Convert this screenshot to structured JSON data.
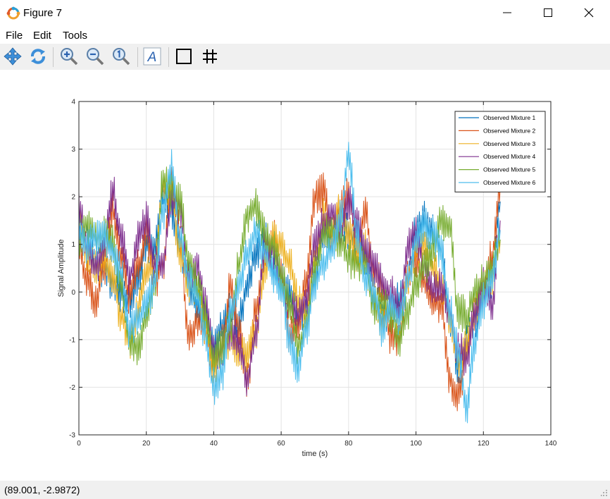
{
  "window": {
    "title": "Figure 7"
  },
  "menu": [
    {
      "key": "file",
      "label": "File"
    },
    {
      "key": "edit",
      "label": "Edit"
    },
    {
      "key": "tools",
      "label": "Tools"
    }
  ],
  "toolbar": [
    "pan-icon",
    "rotate-icon",
    "zoom-in-icon",
    "zoom-out-icon",
    "zoom-reset-icon",
    "text-insert-icon",
    "axes-box-icon",
    "grid-icon"
  ],
  "status": {
    "coords": "(89.001, -2.9872)"
  },
  "chart_data": {
    "type": "line",
    "title": "",
    "xlabel": "time (s)",
    "ylabel": "Signal Amplitude",
    "xlim": [
      0,
      140
    ],
    "ylim": [
      -3,
      4
    ],
    "xticks": [
      "0",
      "20",
      "40",
      "60",
      "80",
      "100",
      "120",
      "140"
    ],
    "yticks": [
      "-3",
      "-2",
      "-1",
      "0",
      "1",
      "2",
      "3",
      "4"
    ],
    "grid": true,
    "legend_position": "top-right",
    "x": [
      0,
      2.5,
      5,
      7.5,
      10,
      12.5,
      15,
      17.5,
      20,
      22.5,
      25,
      27.5,
      30,
      32.5,
      35,
      37.5,
      40,
      42.5,
      45,
      47.5,
      50,
      52.5,
      55,
      57.5,
      60,
      62.5,
      65,
      67.5,
      70,
      72.5,
      75,
      77.5,
      80,
      82.5,
      85,
      87.5,
      90,
      92.5,
      95,
      97.5,
      100,
      102.5,
      105,
      107.5,
      110,
      112.5,
      115,
      117.5,
      120,
      122.5,
      125
    ],
    "series": [
      {
        "name": "Observed Mixture 1",
        "color": "#0072BD",
        "values": [
          1.5,
          1.0,
          0.6,
          0.5,
          0.2,
          0.0,
          -0.2,
          0.3,
          1.0,
          0.9,
          2.1,
          1.7,
          1.0,
          0.1,
          -0.3,
          -0.5,
          -1.2,
          -0.7,
          -0.4,
          -0.6,
          0.2,
          0.8,
          1.2,
          0.5,
          0.2,
          0.0,
          -0.6,
          -0.3,
          0.3,
          1.2,
          1.0,
          1.5,
          1.3,
          1.1,
          0.8,
          -0.2,
          -0.5,
          -0.4,
          -0.2,
          0.2,
          1.3,
          1.5,
          1.3,
          0.9,
          -0.5,
          -1.6,
          -1.1,
          -0.6,
          -0.1,
          0.3,
          1.9
        ]
      },
      {
        "name": "Observed Mixture 2",
        "color": "#D95319",
        "values": [
          0.9,
          0.3,
          -0.2,
          0.5,
          1.7,
          0.8,
          -0.1,
          0.5,
          1.3,
          0.2,
          0.6,
          2.3,
          1.2,
          -1.0,
          -0.6,
          -0.8,
          -1.6,
          -1.1,
          0.1,
          -0.8,
          -1.9,
          -0.4,
          0.7,
          1.2,
          0.3,
          -0.9,
          -0.7,
          0.3,
          2.0,
          2.1,
          1.2,
          1.8,
          2.0,
          1.0,
          1.6,
          0.5,
          0.1,
          -0.9,
          -1.0,
          0.3,
          0.7,
          0.2,
          -0.2,
          -0.3,
          -1.8,
          -2.2,
          -1.3,
          -0.4,
          0.2,
          0.7,
          2.2
        ]
      },
      {
        "name": "Observed Mixture 3",
        "color": "#EDB120",
        "values": [
          1.6,
          0.8,
          0.5,
          0.7,
          0.3,
          -0.5,
          -1.0,
          -0.4,
          0.4,
          0.6,
          2.3,
          2.0,
          0.8,
          0.2,
          0.0,
          -0.8,
          -1.6,
          -1.1,
          -1.0,
          -1.3,
          -1.3,
          -0.8,
          0.4,
          1.2,
          1.0,
          0.6,
          -0.2,
          -0.5,
          0.7,
          1.6,
          1.3,
          1.7,
          1.2,
          0.7,
          0.9,
          -0.2,
          -0.7,
          -0.3,
          -0.6,
          0.2,
          0.9,
          1.0,
          0.5,
          0.1,
          -0.6,
          -1.5,
          -1.1,
          -0.4,
          0.1,
          0.3,
          1.1
        ]
      },
      {
        "name": "Observed Mixture 4",
        "color": "#7E2F8E",
        "values": [
          1.7,
          1.0,
          0.5,
          1.0,
          2.1,
          1.2,
          0.3,
          1.1,
          1.5,
          0.6,
          0.6,
          2.0,
          1.7,
          0.4,
          0.6,
          -0.3,
          -1.3,
          -1.2,
          -0.8,
          -1.1,
          -1.8,
          -0.9,
          0.9,
          0.9,
          0.3,
          -0.3,
          -0.5,
          -0.1,
          1.0,
          1.4,
          1.7,
          1.2,
          1.9,
          1.4,
          0.8,
          0.6,
          0.2,
          0.0,
          -0.4,
          0.9,
          1.2,
          0.5,
          0.0,
          0.1,
          -0.5,
          -1.2,
          -1.4,
          -0.5,
          0.1,
          -0.3,
          1.5
        ]
      },
      {
        "name": "Observed Mixture 5",
        "color": "#77AC30",
        "values": [
          1.0,
          1.4,
          1.1,
          1.3,
          1.0,
          0.2,
          -1.1,
          -1.2,
          -0.5,
          0.2,
          2.4,
          2.1,
          1.9,
          0.6,
          0.2,
          -0.5,
          -1.4,
          -1.1,
          -0.7,
          0.6,
          1.6,
          1.8,
          1.2,
          1.0,
          0.4,
          -0.2,
          -1.2,
          -0.7,
          0.4,
          1.2,
          1.3,
          1.1,
          0.7,
          0.6,
          0.6,
          -0.3,
          -0.2,
          -0.5,
          -1.0,
          -0.4,
          0.2,
          0.5,
          0.9,
          1.5,
          1.4,
          -0.4,
          -0.5,
          0.0,
          0.2,
          0.5,
          1.1
        ]
      },
      {
        "name": "Observed Mixture 6",
        "color": "#4DBEEE",
        "values": [
          1.3,
          1.0,
          1.1,
          1.2,
          0.8,
          0.4,
          -0.8,
          -0.5,
          -0.3,
          0.2,
          1.7,
          2.6,
          1.1,
          0.3,
          -0.1,
          -0.9,
          -2.0,
          -1.7,
          -0.4,
          0.2,
          0.8,
          1.3,
          0.8,
          0.4,
          0.1,
          -1.0,
          -1.6,
          -0.8,
          0.2,
          0.6,
          0.9,
          1.5,
          2.9,
          1.2,
          0.3,
          0.0,
          -0.8,
          -0.3,
          -0.6,
          0.2,
          1.0,
          1.4,
          1.2,
          0.8,
          -0.4,
          -1.2,
          -2.4,
          -1.0,
          -0.2,
          0.3,
          1.3
        ]
      }
    ]
  }
}
